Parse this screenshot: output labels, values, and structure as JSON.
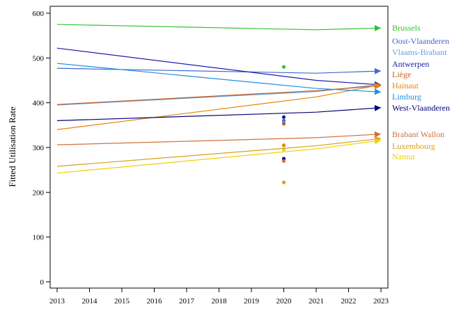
{
  "chart_data": {
    "type": "line",
    "title": "",
    "xlabel": "",
    "ylabel": "Fitted Utilisation Rate",
    "xlim": [
      2013,
      2023
    ],
    "ylim": [
      0,
      600
    ],
    "x_ticks": [
      "2013",
      "2014",
      "2015",
      "2016",
      "2017",
      "2018",
      "2019",
      "2020",
      "2021",
      "2022",
      "2023"
    ],
    "y_ticks": [
      "0",
      "100",
      "200",
      "300",
      "400",
      "500",
      "600"
    ],
    "grid": false,
    "legend": "direct labels at right end of lines",
    "series": [
      {
        "name": "Brussels",
        "color": "#2fc42f",
        "x": [
          2013,
          2021,
          2023
        ],
        "y": [
          575,
          563,
          567
        ],
        "point": {
          "x": 2020,
          "y": 480
        }
      },
      {
        "name": "Oost-Vlaanderen",
        "color": "#4169cf",
        "x": [
          2013,
          2021,
          2023
        ],
        "y": [
          477,
          466,
          471
        ],
        "point": {
          "x": 2020,
          "y": 360
        }
      },
      {
        "name": "Vlaams-Brabant",
        "color": "#6a9bd8",
        "x": [
          2013,
          2021,
          2023
        ],
        "y": [
          395,
          425,
          441
        ],
        "point": {
          "x": 2020,
          "y": 355
        }
      },
      {
        "name": "Antwerpen",
        "color": "#1c1cb0",
        "x": [
          2013,
          2021,
          2023
        ],
        "y": [
          522,
          450,
          440
        ],
        "point": {
          "x": 2020,
          "y": 368
        }
      },
      {
        "name": "Liège",
        "color": "#c0622a",
        "x": [
          2013,
          2021,
          2023
        ],
        "y": [
          396,
          427,
          438
        ],
        "point": {
          "x": 2020,
          "y": 353
        }
      },
      {
        "name": "Hainaut",
        "color": "#e8820e",
        "x": [
          2013,
          2021,
          2023
        ],
        "y": [
          340,
          413,
          440
        ],
        "point": {
          "x": 2020,
          "y": 305
        }
      },
      {
        "name": "Limburg",
        "color": "#1e8fe6",
        "x": [
          2013,
          2021,
          2023
        ],
        "y": [
          488,
          432,
          424
        ],
        "point": {
          "x": 2020,
          "y": 296
        }
      },
      {
        "name": "West-Vlaanderen",
        "color": "#00007a",
        "x": [
          2013,
          2021,
          2023
        ],
        "y": [
          360,
          379,
          389
        ],
        "point": {
          "x": 2020,
          "y": 275
        }
      },
      {
        "name": "Brabant Wallon",
        "color": "#d2703a",
        "x": [
          2013,
          2021,
          2023
        ],
        "y": [
          306,
          322,
          330
        ],
        "point": {
          "x": 2020,
          "y": 270
        }
      },
      {
        "name": "Luxembourg",
        "color": "#d8a018",
        "x": [
          2013,
          2021,
          2023
        ],
        "y": [
          258,
          304,
          320
        ],
        "point": {
          "x": 2020,
          "y": 222
        }
      },
      {
        "name": "Namur",
        "color": "#f0d000",
        "x": [
          2013,
          2021,
          2023
        ],
        "y": [
          243,
          297,
          316
        ],
        "point": {
          "x": 2020,
          "y": 295
        }
      }
    ]
  }
}
